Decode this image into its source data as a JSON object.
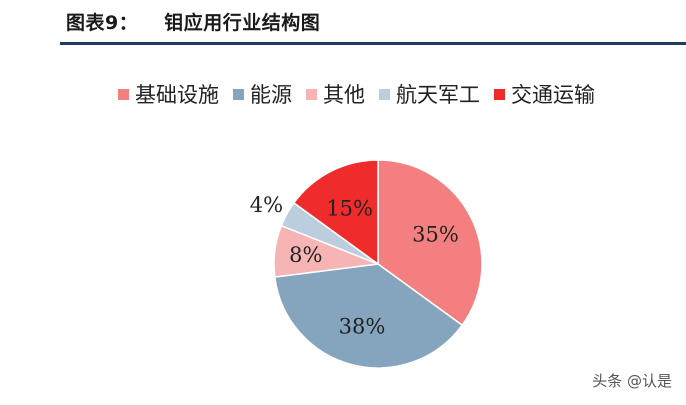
{
  "header": {
    "figure_number": "图表9：",
    "title": "钼应用行业结构图"
  },
  "chart_data": {
    "type": "pie",
    "title": "钼应用行业结构图",
    "legend_position": "top",
    "start_angle_deg": 0,
    "direction": "clockwise",
    "categories": [
      "基础设施",
      "能源",
      "其他",
      "航天军工",
      "交通运输"
    ],
    "values": [
      35,
      38,
      8,
      4,
      15
    ],
    "labels": [
      "35%",
      "38%",
      "8%",
      "4%",
      "15%"
    ],
    "colors": [
      "#f47f80",
      "#84a5bd",
      "#f6b4b4",
      "#bccddd",
      "#ef2b2b"
    ]
  },
  "watermark": "头条 @认是"
}
